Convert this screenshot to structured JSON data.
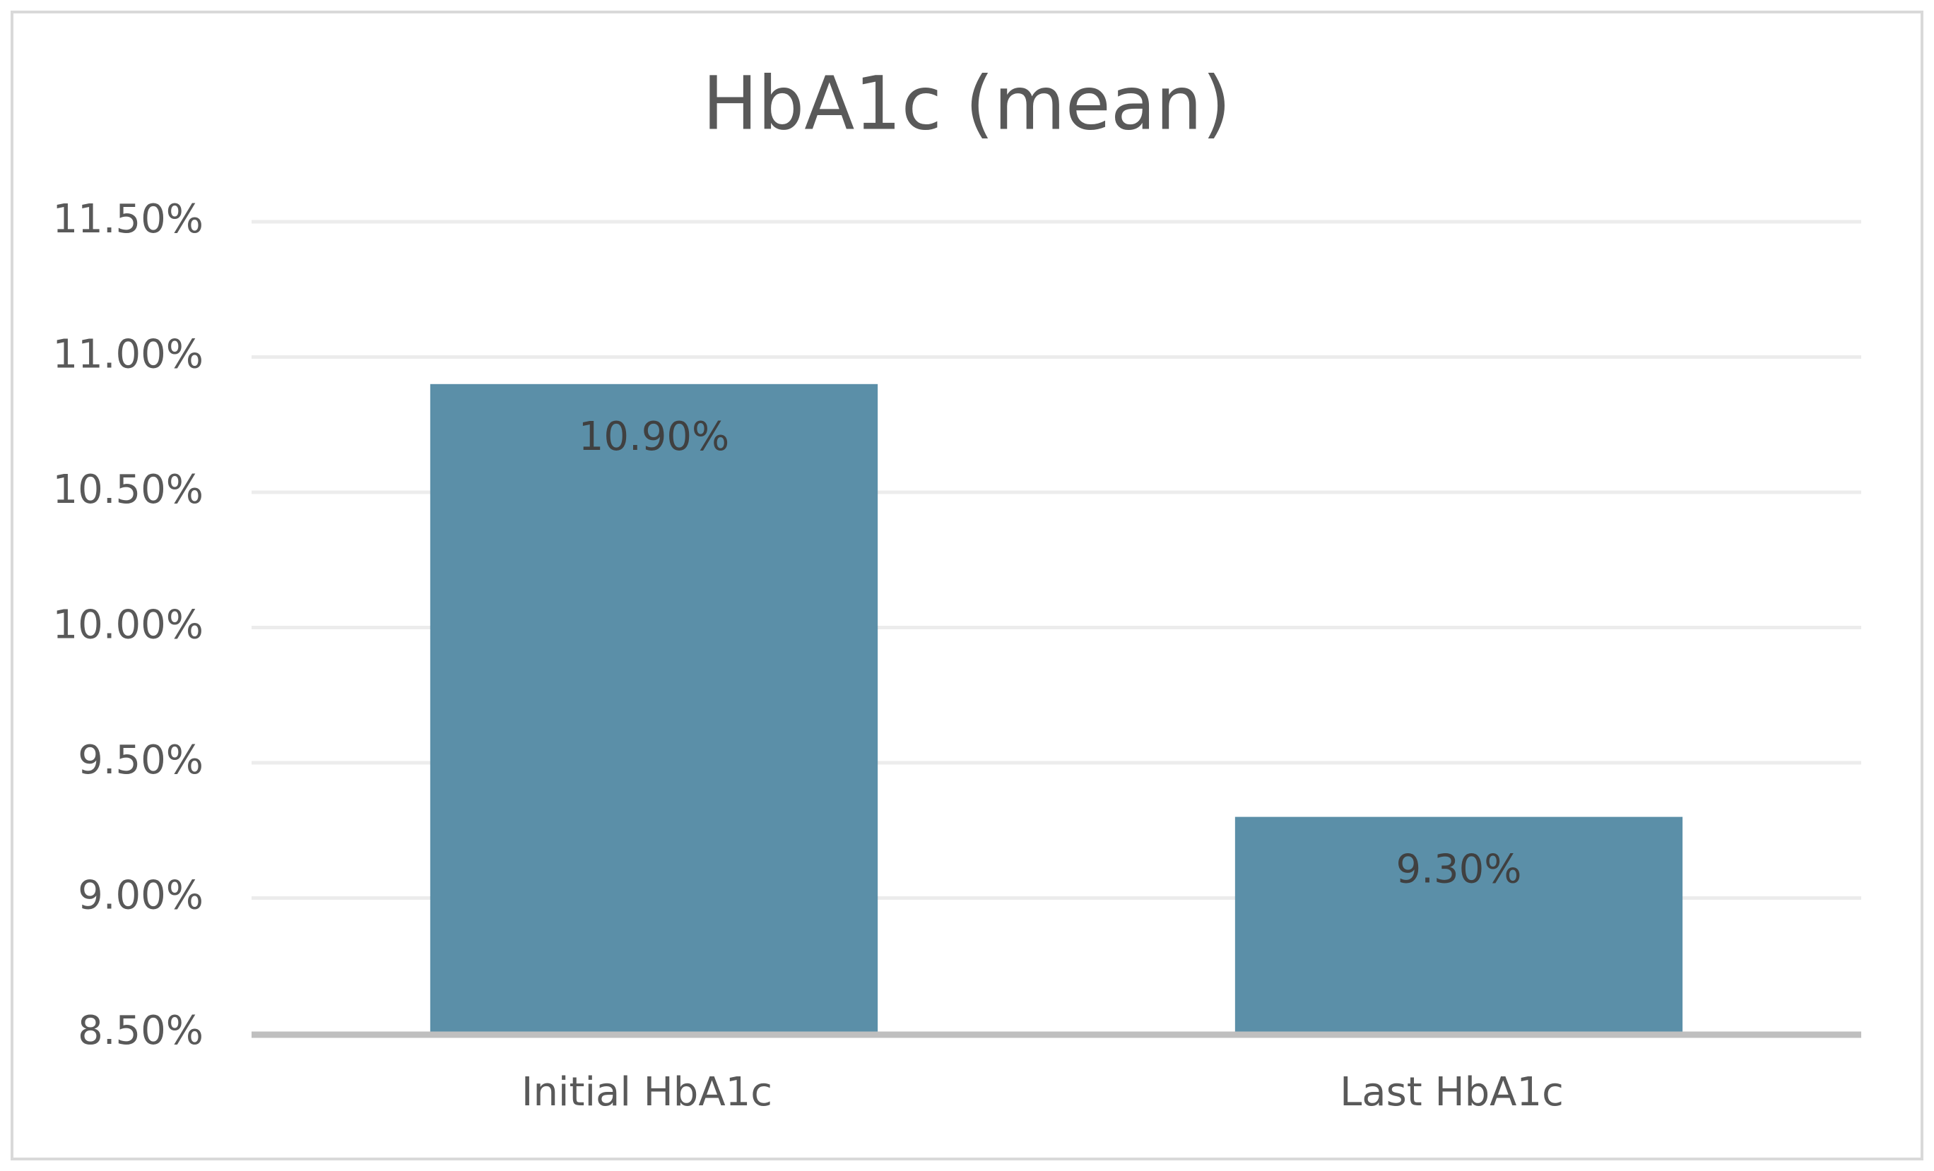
{
  "chart_data": {
    "type": "bar",
    "title": "HbA1c (mean)",
    "categories": [
      "Initial HbA1c",
      "Last HbA1c"
    ],
    "values": [
      10.9,
      9.3
    ],
    "value_labels": [
      "10.90%",
      "9.30%"
    ],
    "color": "#5b8fa8",
    "ylim": [
      8.5,
      11.5
    ],
    "yticks": [
      {
        "value": 8.5,
        "label": "8.50%"
      },
      {
        "value": 9,
        "label": "9.00%"
      },
      {
        "value": 9.5,
        "label": "9.50%"
      },
      {
        "value": 10,
        "label": "10.00%"
      },
      {
        "value": 10.5,
        "label": "10.50%"
      },
      {
        "value": 11,
        "label": "11.00%"
      },
      {
        "value": 11.5,
        "label": "11.50%"
      }
    ],
    "grid": true
  }
}
